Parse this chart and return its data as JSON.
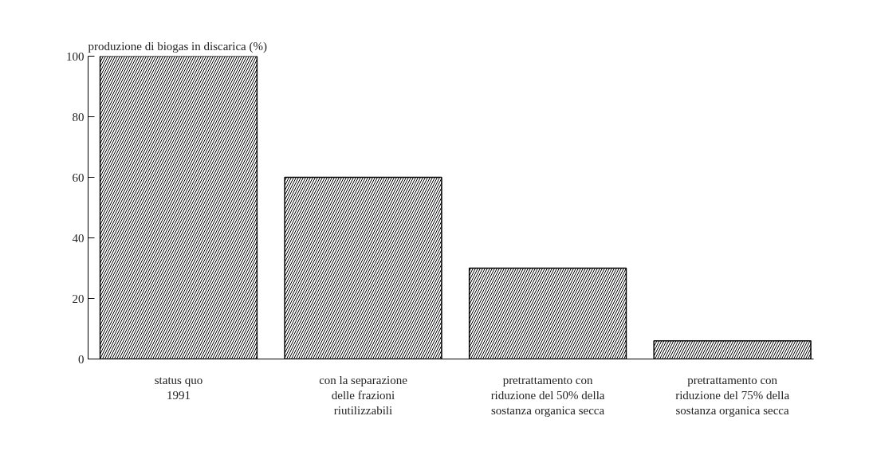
{
  "chart_data": {
    "type": "bar",
    "ylabel": "produzione di biogas in discarica (%)",
    "categories": [
      "status quo\n1991",
      "con la separazione\ndelle frazioni\nriutilizzabili",
      "pretrattamento con\nriduzione del 50% della\nsostanza organica secca",
      "pretrattamento con\nriduzione del 75% della\nsostanza organica secca"
    ],
    "values": [
      100,
      60,
      30,
      6
    ],
    "color": "#000000",
    "ylim": [
      0,
      100
    ],
    "yticks": [
      0,
      20,
      40,
      60,
      80,
      100
    ],
    "grid": false
  }
}
